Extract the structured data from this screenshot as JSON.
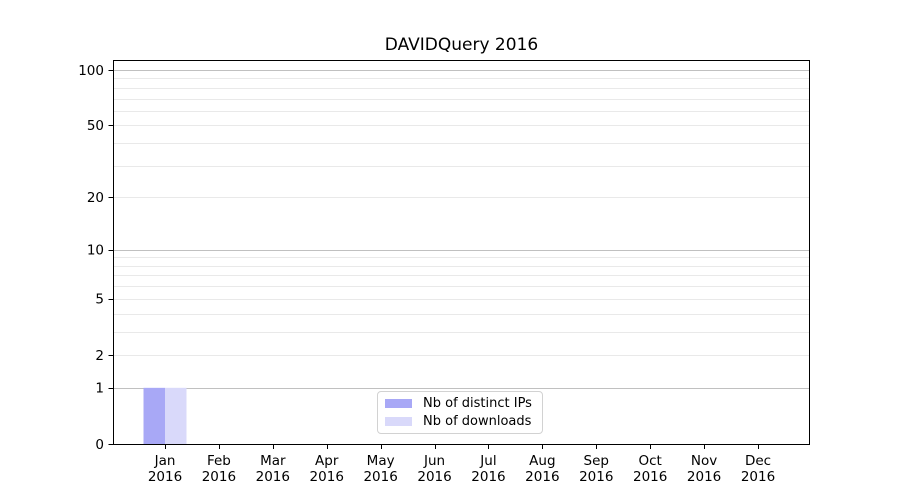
{
  "chart_data": {
    "type": "bar",
    "title": "DAVIDQuery 2016",
    "categories_month": [
      "Jan",
      "Feb",
      "Mar",
      "Apr",
      "May",
      "Jun",
      "Jul",
      "Aug",
      "Sep",
      "Oct",
      "Nov",
      "Dec"
    ],
    "categories_year": "2016",
    "series": [
      {
        "name": "Nb of distinct IPs",
        "color": "#a8a8f6",
        "values": [
          1,
          0,
          0,
          0,
          0,
          0,
          0,
          0,
          0,
          0,
          0,
          0
        ]
      },
      {
        "name": "Nb of downloads",
        "color": "#d9d9fa",
        "values": [
          1,
          0,
          0,
          0,
          0,
          0,
          0,
          0,
          0,
          0,
          0,
          0
        ]
      }
    ],
    "y_scale": "log1p",
    "ylim": [
      0,
      113
    ],
    "y_labeled_ticks": [
      0,
      1,
      2,
      5,
      10,
      20,
      50,
      100
    ],
    "y_major_grid": [
      1,
      10,
      100
    ],
    "y_minor_grid": [
      2,
      3,
      4,
      5,
      6,
      7,
      8,
      9,
      20,
      30,
      40,
      50,
      60,
      70,
      80,
      90
    ],
    "grid": "horizontal",
    "legend_position": "lower-center",
    "colors": {
      "bar_distinct_ips": "#a8a8f6",
      "bar_downloads": "#d9d9fa",
      "grid_major": "#c0c0c0",
      "grid_minor": "#e9e9e9",
      "axis": "#000000",
      "text": "#000000",
      "legend_border": "#d2d2d2"
    }
  }
}
